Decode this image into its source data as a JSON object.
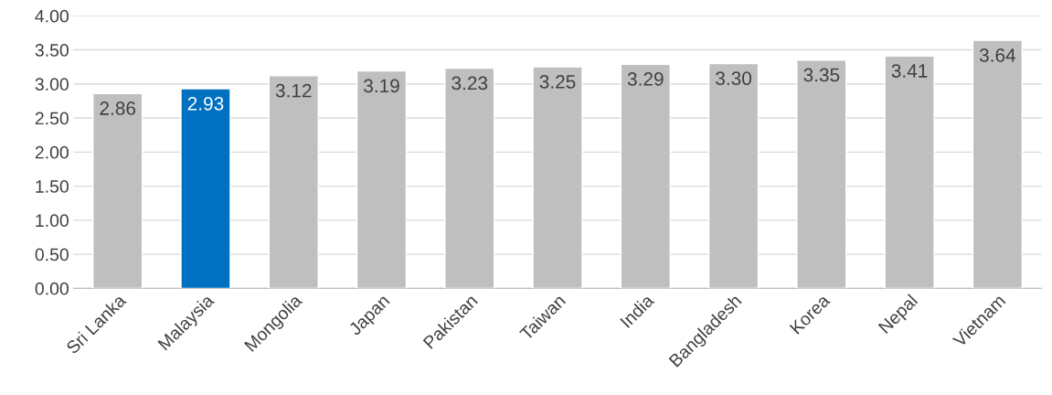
{
  "chart_data": {
    "type": "bar",
    "categories": [
      "Sri Lanka",
      "Malaysia",
      "Mongolia",
      "Japan",
      "Pakistan",
      "Taiwan",
      "India",
      "Bangladesh",
      "Korea",
      "Nepal",
      "Vietnam"
    ],
    "values": [
      2.86,
      2.93,
      3.12,
      3.19,
      3.23,
      3.25,
      3.29,
      3.3,
      3.35,
      3.41,
      3.64
    ],
    "value_labels": [
      "2.86",
      "2.93",
      "3.12",
      "3.19",
      "3.23",
      "3.25",
      "3.29",
      "3.30",
      "3.35",
      "3.41",
      "3.64"
    ],
    "colors": [
      "#bfbfbf",
      "#0070c0",
      "#bfbfbf",
      "#bfbfbf",
      "#bfbfbf",
      "#bfbfbf",
      "#bfbfbf",
      "#bfbfbf",
      "#bfbfbf",
      "#bfbfbf",
      "#bfbfbf"
    ],
    "ylim": [
      0,
      4
    ],
    "yticks": [
      {
        "value": 0,
        "label": "0.00"
      },
      {
        "value": 0.5,
        "label": "0.50"
      },
      {
        "value": 1,
        "label": "1.00"
      },
      {
        "value": 1.5,
        "label": "1.50"
      },
      {
        "value": 2,
        "label": "2.00"
      },
      {
        "value": 2.5,
        "label": "2.50"
      },
      {
        "value": 3,
        "label": "3.00"
      },
      {
        "value": 3.5,
        "label": "3.50"
      },
      {
        "value": 4,
        "label": "4.00"
      }
    ],
    "grid": "y"
  }
}
